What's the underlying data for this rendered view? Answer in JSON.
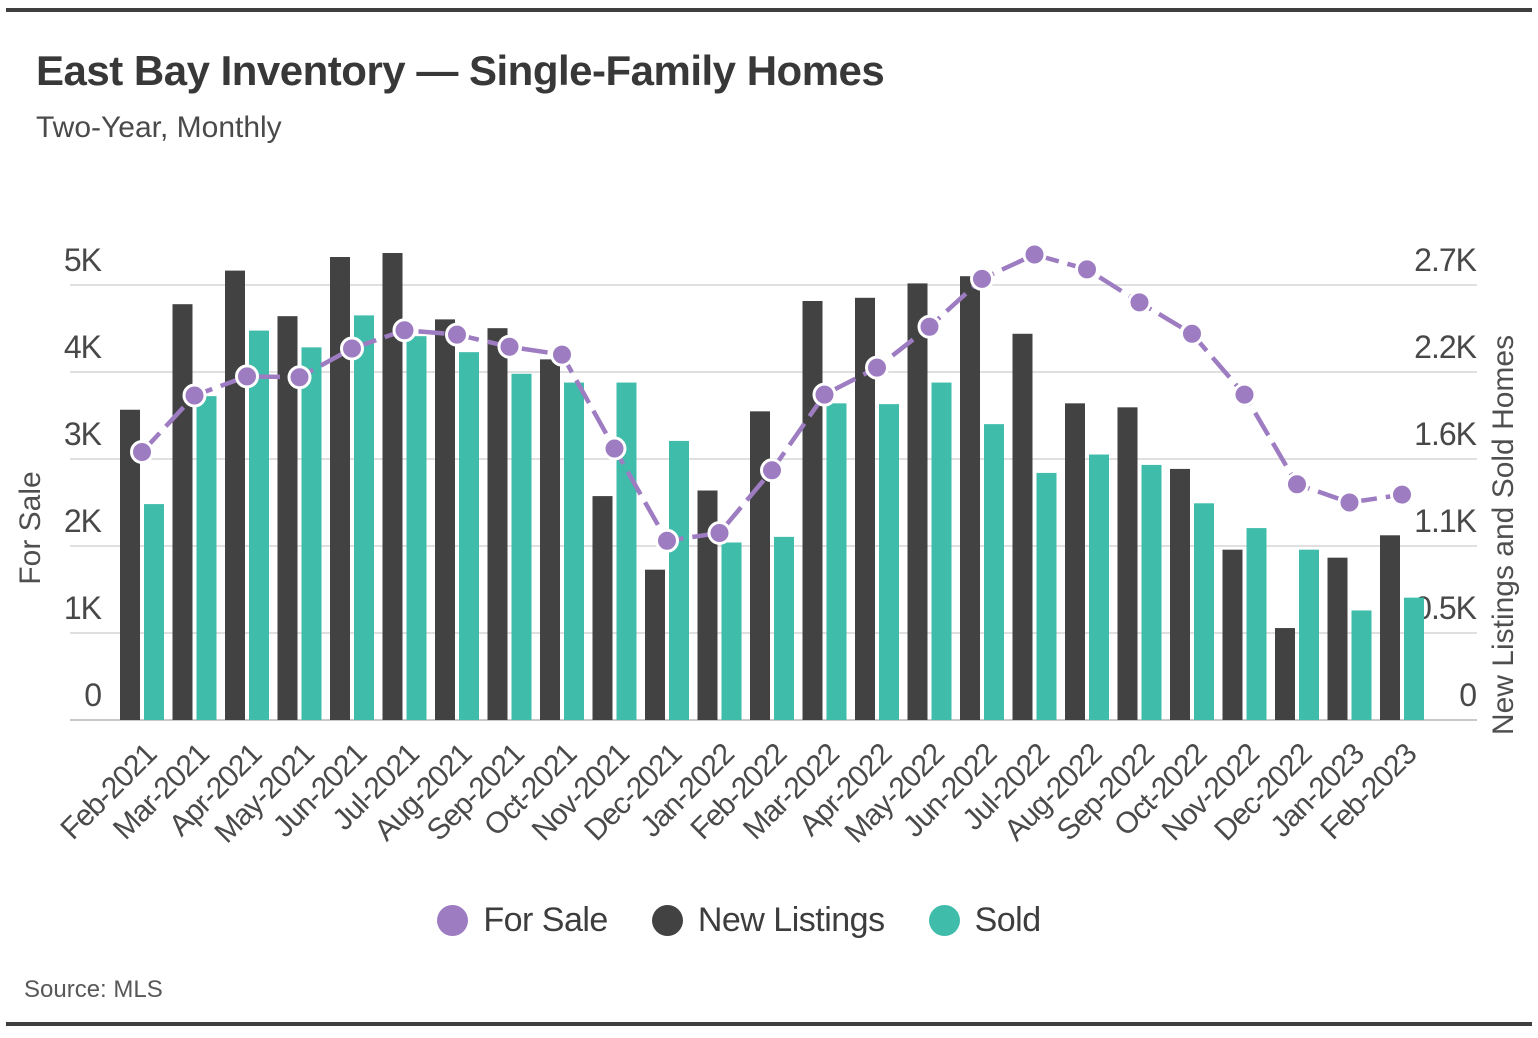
{
  "header": {
    "title": "East Bay Inventory — Single-Family Homes",
    "subtitle": "Two-Year, Monthly"
  },
  "footer": {
    "source": "Source: MLS"
  },
  "chart_data": {
    "type": "bar",
    "subtype": "grouped-bars-plus-line-combo",
    "title": "East Bay Inventory — Single-Family Homes",
    "subtitle": "Two-Year, Monthly",
    "grid": true,
    "legend_position": "bottom",
    "categories": [
      "Feb-2021",
      "Mar-2021",
      "Apr-2021",
      "May-2021",
      "Jun-2021",
      "Jul-2021",
      "Aug-2021",
      "Sep-2021",
      "Oct-2021",
      "Nov-2021",
      "Dec-2021",
      "Jan-2022",
      "Feb-2022",
      "Mar-2022",
      "Apr-2022",
      "May-2022",
      "Jun-2022",
      "Jul-2022",
      "Aug-2022",
      "Sep-2022",
      "Oct-2022",
      "Nov-2022",
      "Dec-2022",
      "Jan-2023",
      "Feb-2023"
    ],
    "series": [
      {
        "name": "For Sale",
        "type": "line",
        "style": "dashed",
        "axis": "left",
        "color": "#9d7cc1",
        "values": [
          3080,
          3730,
          3950,
          3940,
          4270,
          4480,
          4430,
          4290,
          4200,
          3120,
          2060,
          2150,
          2870,
          3740,
          4050,
          4520,
          5070,
          5350,
          5180,
          4800,
          4440,
          3740,
          2710,
          2500,
          2590
        ]
      },
      {
        "name": "New Listings",
        "type": "bar",
        "axis": "right",
        "color": "#424242",
        "values": [
          1940,
          2600,
          2810,
          2525,
          2895,
          2920,
          2505,
          2450,
          2255,
          1400,
          940,
          1435,
          1930,
          2620,
          2640,
          2730,
          2775,
          2415,
          1980,
          1955,
          1570,
          1065,
          575,
          1015,
          1155
        ]
      },
      {
        "name": "Sold",
        "type": "bar",
        "axis": "right",
        "color": "#3fbcaa",
        "values": [
          1350,
          2025,
          2435,
          2330,
          2530,
          2400,
          2300,
          2165,
          2110,
          2110,
          1745,
          1110,
          1145,
          1980,
          1975,
          2110,
          1850,
          1545,
          1660,
          1595,
          1355,
          1200,
          1065,
          685,
          765
        ]
      }
    ],
    "left_axis": {
      "title": "For Sale",
      "min": 0,
      "max": 5000,
      "tick_values": [
        0,
        1000,
        2000,
        3000,
        4000,
        5000
      ],
      "tick_labels": [
        "0",
        "1K",
        "2K",
        "3K",
        "4K",
        "5K"
      ]
    },
    "right_axis": {
      "title": "New Listings and Sold Homes",
      "min": 0,
      "max": 2720,
      "tick_values": [
        0,
        544,
        1088,
        1632,
        2176,
        2720
      ],
      "tick_labels": [
        "0",
        "0.5K",
        "1.1K",
        "1.6K",
        "2.2K",
        "2.7K"
      ]
    }
  }
}
